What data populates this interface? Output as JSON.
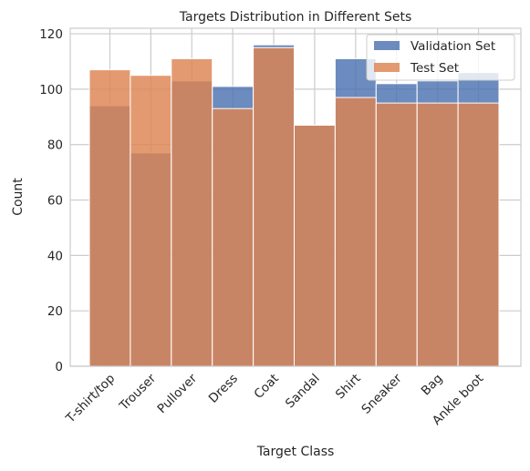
{
  "chart_data": {
    "type": "bar",
    "title": "Targets Distribution in Different Sets",
    "xlabel": "Target Class",
    "ylabel": "Count",
    "categories": [
      "T-shirt/top",
      "Trouser",
      "Pullover",
      "Dress",
      "Coat",
      "Sandal",
      "Shirt",
      "Sneaker",
      "Bag",
      "Ankle boot"
    ],
    "series": [
      {
        "name": "Validation Set",
        "values": [
          94,
          77,
          103,
          101,
          116,
          87,
          111,
          102,
          103,
          106
        ],
        "color": "#4c72b0"
      },
      {
        "name": "Test Set",
        "values": [
          107,
          105,
          111,
          93,
          115,
          87,
          97,
          95,
          95,
          95
        ],
        "color": "#dd8452"
      }
    ],
    "ylim": [
      0,
      122
    ],
    "yticks": [
      0,
      20,
      40,
      60,
      80,
      100,
      120
    ],
    "grid": true,
    "legend_position": "top-right",
    "bar_alpha": 0.82,
    "overlay": true
  }
}
